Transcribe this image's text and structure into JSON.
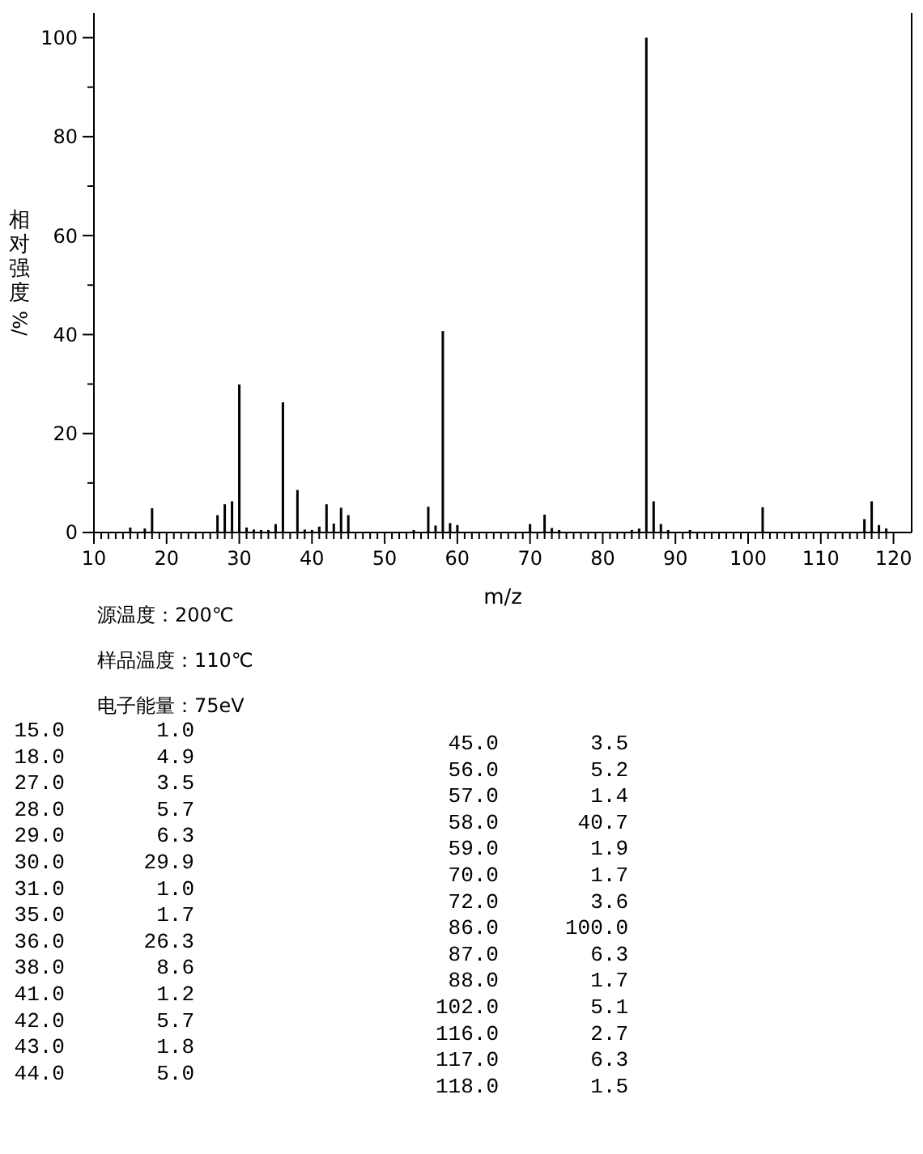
{
  "chart_data": [
    {
      "type": "bar",
      "ylabel": "相对强度%/",
      "xlabel": "m/z",
      "xlim": [
        10,
        122.5
      ],
      "ylim": [
        0,
        105
      ],
      "xticks": [
        10,
        {
          "value": 11,
          "label": null
        },
        {
          "value": 12,
          "label": null
        },
        {
          "value": 13,
          "label": null
        },
        {
          "value": 14,
          "label": null
        },
        {
          "value": 15,
          "label": null
        },
        {
          "value": 16,
          "label": null
        },
        {
          "value": 17,
          "label": null
        },
        {
          "value": 18,
          "label": null
        },
        {
          "value": 19,
          "label": null
        },
        20,
        {
          "value": 21,
          "label": null
        },
        {
          "value": 22,
          "label": null
        },
        {
          "value": 23,
          "label": null
        },
        {
          "value": 24,
          "label": null
        },
        {
          "value": 25,
          "label": null
        },
        {
          "value": 26,
          "label": null
        },
        {
          "value": 27,
          "label": null
        },
        {
          "value": 28,
          "label": null
        },
        {
          "value": 29,
          "label": null
        },
        30,
        {
          "value": 31,
          "label": null
        },
        {
          "value": 32,
          "label": null
        },
        {
          "value": 33,
          "label": null
        },
        {
          "value": 34,
          "label": null
        },
        {
          "value": 35,
          "label": null
        },
        {
          "value": 36,
          "label": null
        },
        {
          "value": 37,
          "label": null
        },
        {
          "value": 38,
          "label": null
        },
        {
          "value": 39,
          "label": null
        },
        40,
        {
          "value": 41,
          "label": null
        },
        {
          "value": 42,
          "label": null
        },
        {
          "value": 43,
          "label": null
        },
        {
          "value": 44,
          "label": null
        },
        {
          "value": 45,
          "label": null
        },
        {
          "value": 46,
          "label": null
        },
        {
          "value": 47,
          "label": null
        },
        {
          "value": 48,
          "label": null
        },
        {
          "value": 49,
          "label": null
        },
        50,
        {
          "value": 51,
          "label": null
        },
        {
          "value": 52,
          "label": null
        },
        {
          "value": 53,
          "label": null
        },
        {
          "value": 54,
          "label": null
        },
        {
          "value": 55,
          "label": null
        },
        {
          "value": 56,
          "label": null
        },
        {
          "value": 57,
          "label": null
        },
        {
          "value": 58,
          "label": null
        },
        {
          "value": 59,
          "label": null
        },
        60,
        {
          "value": 61,
          "label": null
        },
        {
          "value": 62,
          "label": null
        },
        {
          "value": 63,
          "label": null
        },
        {
          "value": 64,
          "label": null
        },
        {
          "value": 65,
          "label": null
        },
        {
          "value": 66,
          "label": null
        },
        {
          "value": 67,
          "label": null
        },
        {
          "value": 68,
          "label": null
        },
        {
          "value": 69,
          "label": null
        },
        70,
        {
          "value": 71,
          "label": null
        },
        {
          "value": 72,
          "label": null
        },
        {
          "value": 73,
          "label": null
        },
        {
          "value": 74,
          "label": null
        },
        {
          "value": 75,
          "label": null
        },
        {
          "value": 76,
          "label": null
        },
        {
          "value": 77,
          "label": null
        },
        {
          "value": 78,
          "label": null
        },
        {
          "value": 79,
          "label": null
        },
        80,
        {
          "value": 81,
          "label": null
        },
        {
          "value": 82,
          "label": null
        },
        {
          "value": 83,
          "label": null
        },
        {
          "value": 84,
          "label": null
        },
        {
          "value": 85,
          "label": null
        },
        {
          "value": 86,
          "label": null
        },
        {
          "value": 87,
          "label": null
        },
        {
          "value": 88,
          "label": null
        },
        {
          "value": 89,
          "label": null
        },
        90,
        {
          "value": 91,
          "label": null
        },
        {
          "value": 92,
          "label": null
        },
        {
          "value": 93,
          "label": null
        },
        {
          "value": 94,
          "label": null
        },
        {
          "value": 95,
          "label": null
        },
        {
          "value": 96,
          "label": null
        },
        {
          "value": 97,
          "label": null
        },
        {
          "value": 98,
          "label": null
        },
        {
          "value": 99,
          "label": null
        },
        100,
        {
          "value": 101,
          "label": null
        },
        {
          "value": 102,
          "label": null
        },
        {
          "value": 103,
          "label": null
        },
        {
          "value": 104,
          "label": null
        },
        {
          "value": 105,
          "label": null
        },
        {
          "value": 106,
          "label": null
        },
        {
          "value": 107,
          "label": null
        },
        {
          "value": 108,
          "label": null
        },
        {
          "value": 109,
          "label": null
        },
        110,
        {
          "value": 111,
          "label": null
        },
        {
          "value": 112,
          "label": null
        },
        {
          "value": 113,
          "label": null
        },
        {
          "value": 114,
          "label": null
        },
        {
          "value": 115,
          "label": null
        },
        {
          "value": 116,
          "label": null
        },
        {
          "value": 117,
          "label": null
        },
        {
          "value": 118,
          "label": null
        },
        {
          "value": 119,
          "label": null
        },
        120
      ],
      "yticks": [
        0,
        {
          "value": 10,
          "label": null
        },
        20,
        {
          "value": 30,
          "label": null
        },
        40,
        {
          "value": 50,
          "label": null
        },
        60,
        {
          "value": 70,
          "label": null
        },
        80,
        {
          "value": 90,
          "label": null
        },
        100
      ],
      "annotations": [
        "源温度：200℃",
        "样品温度：110℃",
        "电子能量：75eV"
      ],
      "series": [
        {
          "color": "#000000",
          "x": [
            15,
            18,
            27,
            28,
            29,
            30,
            31,
            35,
            36,
            38,
            41,
            42,
            43,
            44,
            45,
            56,
            57,
            58,
            59,
            70,
            72,
            86,
            87,
            88,
            102,
            116,
            117,
            118
          ],
          "values": [
            1.0,
            4.9,
            3.5,
            5.7,
            6.3,
            29.9,
            1.0,
            1.7,
            26.3,
            8.6,
            1.2,
            5.7,
            1.8,
            5.0,
            3.5,
            5.2,
            1.4,
            40.7,
            1.9,
            1.7,
            3.6,
            100.0,
            6.3,
            1.7,
            5.1,
            2.7,
            6.3,
            1.5
          ]
        },
        {
          "color": "#000000",
          "x": [
            17,
            32,
            33,
            34,
            39,
            40,
            54,
            60,
            73,
            74,
            84,
            85,
            89,
            92,
            119
          ],
          "values": [
            0.8,
            0.6,
            0.5,
            0.5,
            0.6,
            0.5,
            0.5,
            1.5,
            0.9,
            0.5,
            0.5,
            0.8,
            0.5,
            0.5,
            0.8
          ]
        }
      ]
    },
    {
      "type": "other",
      "categories": [
        "15.0",
        "18.0",
        "27.0",
        "28.0",
        "29.0",
        "30.0",
        "31.0",
        "35.0",
        "36.0",
        "38.0",
        "41.0",
        "42.0",
        "43.0",
        "44.0",
        "45.0",
        "56.0",
        "57.0",
        "58.0",
        "59.0",
        "70.0",
        "72.0",
        "86.0",
        "87.0",
        "88.0",
        "102.0",
        "116.0",
        "117.0",
        "118.0"
      ],
      "value_labels": [
        "1.0",
        "4.9",
        "3.5",
        "5.7",
        "6.3",
        "29.9",
        "1.0",
        "1.7",
        "26.3",
        "8.6",
        "1.2",
        "5.7",
        "1.8",
        "5.0",
        "3.5",
        "5.2",
        "1.4",
        "40.7",
        "1.9",
        "1.7",
        "3.6",
        "100.0",
        "6.3",
        "1.7",
        "5.1",
        "2.7",
        "6.3",
        "1.5"
      ]
    }
  ]
}
